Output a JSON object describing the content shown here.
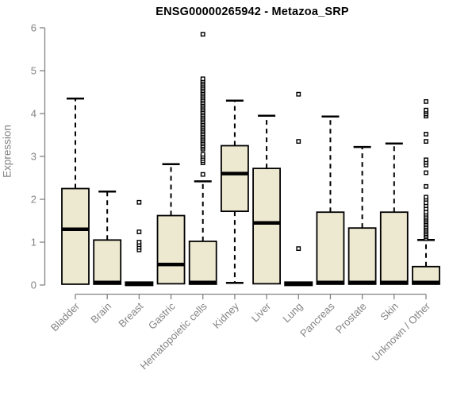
{
  "chart_data": {
    "type": "boxplot",
    "title": "ENSG00000265942 - Metazoa_SRP",
    "ylabel": "Expression",
    "xlabel": "",
    "ylim": [
      0,
      6
    ],
    "yticks": [
      0,
      1,
      2,
      3,
      4,
      5,
      6
    ],
    "grid": false,
    "legend": "none",
    "categories": [
      "Bladder",
      "Brain",
      "Breast",
      "Gastric",
      "Hematopoietic cells",
      "Kidney",
      "Liver",
      "Lung",
      "Pancreas",
      "Prostate",
      "Skin",
      "Unknown / Other"
    ],
    "boxes": [
      {
        "category": "Bladder",
        "low": 0.02,
        "q1": 0.02,
        "median": 1.3,
        "q3": 2.25,
        "high": 4.35,
        "outliers": []
      },
      {
        "category": "Brain",
        "low": 0.02,
        "q1": 0.02,
        "median": 0.06,
        "q3": 1.05,
        "high": 2.18,
        "outliers": []
      },
      {
        "category": "Breast",
        "low": 0.02,
        "q1": 0.02,
        "median": 0.03,
        "q3": 0.04,
        "high": 0.05,
        "outliers": [
          0.82,
          0.88,
          0.94,
          1.0,
          1.24,
          1.93
        ]
      },
      {
        "category": "Gastric",
        "low": 0.03,
        "q1": 0.03,
        "median": 0.48,
        "q3": 1.62,
        "high": 2.82,
        "outliers": []
      },
      {
        "category": "Hematopoietic cells",
        "low": 0.02,
        "q1": 0.02,
        "median": 0.06,
        "q3": 1.02,
        "high": 2.42,
        "outliers": [
          2.58,
          2.85,
          2.9,
          2.95,
          3.0,
          3.05,
          3.17,
          3.21,
          3.25,
          3.29,
          3.33,
          3.37,
          3.41,
          3.45,
          3.49,
          3.53,
          3.57,
          3.61,
          3.65,
          3.69,
          3.73,
          3.77,
          3.81,
          3.85,
          3.89,
          3.93,
          3.97,
          4.01,
          4.05,
          4.09,
          4.13,
          4.17,
          4.21,
          4.25,
          4.29,
          4.33,
          4.37,
          4.41,
          4.45,
          4.49,
          4.53,
          4.57,
          4.61,
          4.65,
          4.69,
          4.73,
          4.77,
          4.81,
          5.85
        ]
      },
      {
        "category": "Kidney",
        "low": 0.05,
        "q1": 1.72,
        "median": 2.6,
        "q3": 3.25,
        "high": 4.3,
        "outliers": []
      },
      {
        "category": "Liver",
        "low": 0.03,
        "q1": 0.03,
        "median": 1.45,
        "q3": 2.72,
        "high": 3.95,
        "outliers": []
      },
      {
        "category": "Lung",
        "low": 0.02,
        "q1": 0.02,
        "median": 0.03,
        "q3": 0.04,
        "high": 0.05,
        "outliers": [
          0.85,
          3.35,
          4.45
        ]
      },
      {
        "category": "Pancreas",
        "low": 0.02,
        "q1": 0.02,
        "median": 0.06,
        "q3": 1.7,
        "high": 3.93,
        "outliers": []
      },
      {
        "category": "Prostate",
        "low": 0.02,
        "q1": 0.02,
        "median": 0.06,
        "q3": 1.33,
        "high": 3.22,
        "outliers": []
      },
      {
        "category": "Skin",
        "low": 0.02,
        "q1": 0.02,
        "median": 0.06,
        "q3": 1.7,
        "high": 3.3,
        "outliers": []
      },
      {
        "category": "Unknown / Other",
        "low": 0.02,
        "q1": 0.02,
        "median": 0.06,
        "q3": 0.43,
        "high": 1.05,
        "outliers": [
          1.08,
          1.12,
          1.16,
          1.2,
          1.24,
          1.28,
          1.32,
          1.36,
          1.4,
          1.44,
          1.48,
          1.52,
          1.56,
          1.6,
          1.65,
          1.7,
          1.78,
          1.85,
          1.92,
          2.0,
          2.05,
          2.3,
          2.62,
          2.8,
          2.86,
          2.92,
          3.35,
          3.52,
          3.94,
          3.99,
          4.04,
          4.08,
          4.28
        ]
      }
    ],
    "colors": {
      "box_fill": "#EDE8D0",
      "box_border": "#000000",
      "median": "#000000",
      "whisker": "#000000",
      "outlier_stroke": "#000000",
      "outlier_fill": "#ffffff",
      "axis": "#848484",
      "tick_label": "#848484",
      "title": "#000000"
    }
  }
}
